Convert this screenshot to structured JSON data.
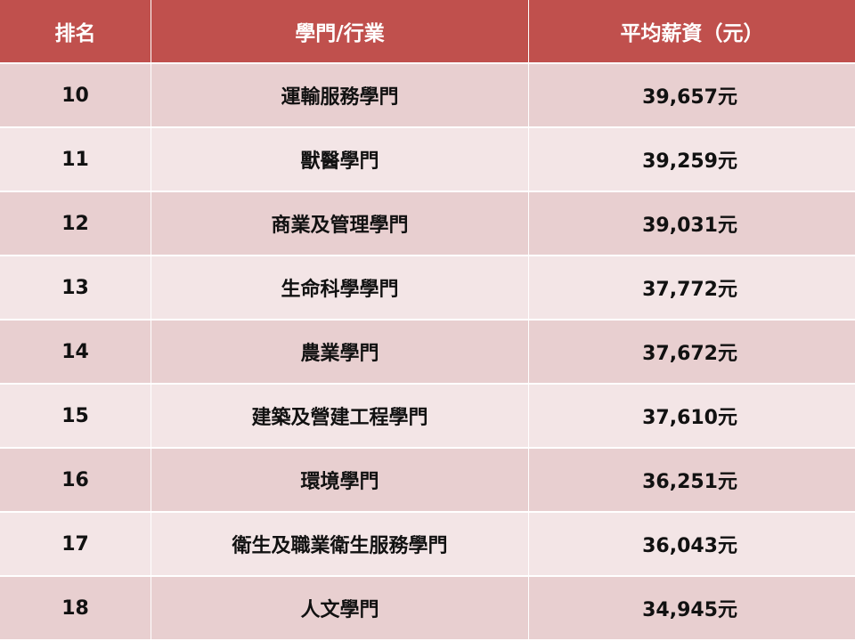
{
  "table": {
    "headers": [
      "排名",
      "學門/行業",
      "平均薪資（元）"
    ],
    "rows": [
      {
        "rank": "10",
        "field": "運輸服務學門",
        "salary": "39,657元"
      },
      {
        "rank": "11",
        "field": "獸醫學門",
        "salary": "39,259元"
      },
      {
        "rank": "12",
        "field": "商業及管理學門",
        "salary": "39,031元"
      },
      {
        "rank": "13",
        "field": "生命科學學門",
        "salary": "37,772元"
      },
      {
        "rank": "14",
        "field": "農業學門",
        "salary": "37,672元"
      },
      {
        "rank": "15",
        "field": "建築及營建工程學門",
        "salary": "37,610元"
      },
      {
        "rank": "16",
        "field": "環境學門",
        "salary": "36,251元"
      },
      {
        "rank": "17",
        "field": "衛生及職業衛生服務學門",
        "salary": "36,043元"
      },
      {
        "rank": "18",
        "field": "人文學門",
        "salary": "34,945元"
      }
    ]
  },
  "colors": {
    "header": "#c0504d",
    "row_dark": "#e8cfd0",
    "row_light": "#f3e5e6"
  }
}
